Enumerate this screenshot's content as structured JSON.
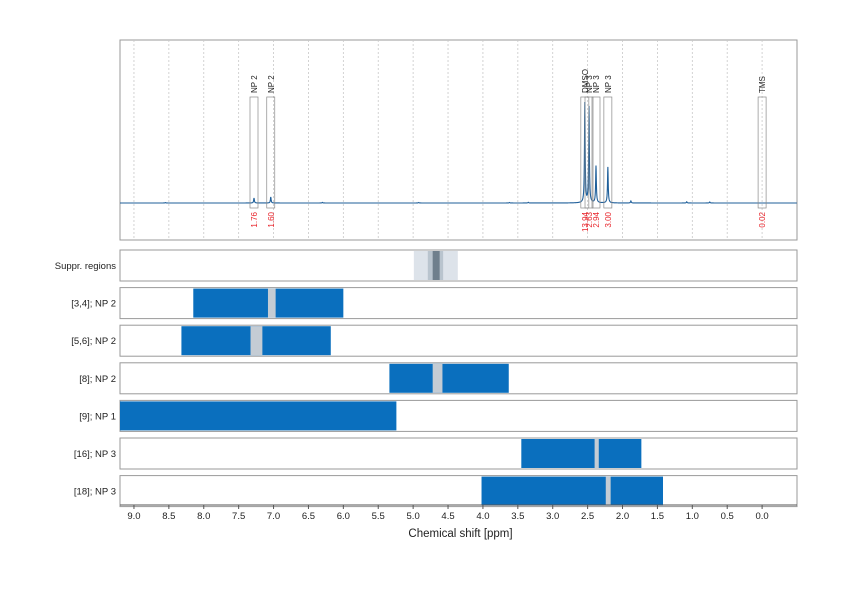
{
  "chart_data": {
    "type": "spectrum",
    "xlabel": "Chemical shift [ppm]",
    "xlim": [
      9.2,
      -0.5
    ],
    "xticks": [
      "9.0",
      "8.5",
      "8.0",
      "7.5",
      "7.0",
      "6.5",
      "6.0",
      "5.5",
      "5.0",
      "4.5",
      "4.0",
      "3.5",
      "3.0",
      "2.5",
      "2.0",
      "1.5",
      "1.0",
      "0.5",
      "0.0"
    ],
    "colors": {
      "block": "#0a6fbe",
      "gap": "#c4ccd4",
      "spectrum": "#1f5f9a",
      "integral": "#e8232a",
      "frame": "#9a9a9a"
    },
    "peaks": [
      {
        "label": "NP 2",
        "shift": 7.28,
        "integral": "1.76"
      },
      {
        "label": "NP 2",
        "shift": 7.04,
        "integral": "1.60"
      },
      {
        "label": "DMSO",
        "shift": 2.54,
        "integral": "13.94"
      },
      {
        "label": "NP 3",
        "shift": 2.48,
        "integral": "2.63"
      },
      {
        "label": "NP 3",
        "shift": 2.38,
        "integral": "2.94"
      },
      {
        "label": "NP 3",
        "shift": 2.21,
        "integral": "3.00"
      },
      {
        "label": "TMS",
        "shift": 0.0,
        "integral": "0.02"
      }
    ],
    "suppression": {
      "label": "Suppr. regions",
      "outer": [
        4.99,
        4.36
      ],
      "middle": [
        4.79,
        4.57
      ],
      "inner": [
        4.72,
        4.62
      ]
    },
    "rows": [
      {
        "label": "[3,4]; NP 2",
        "start": 8.15,
        "end": 6.0,
        "gap": [
          7.08,
          6.97
        ]
      },
      {
        "label": "[5,6]; NP 2",
        "start": 8.32,
        "end": 6.18,
        "gap": [
          7.33,
          7.16
        ]
      },
      {
        "label": "[8]; NP 2",
        "start": 5.34,
        "end": 3.63,
        "gap": [
          4.72,
          4.58
        ]
      },
      {
        "label": "[9]; NP 1",
        "start": 9.22,
        "end": 5.24,
        "gap": null
      },
      {
        "label": "[16]; NP 3",
        "start": 3.45,
        "end": 1.73,
        "gap": [
          2.4,
          2.34
        ]
      },
      {
        "label": "[18]; NP 3",
        "start": 4.02,
        "end": 1.42,
        "gap": [
          2.24,
          2.17
        ]
      }
    ]
  }
}
